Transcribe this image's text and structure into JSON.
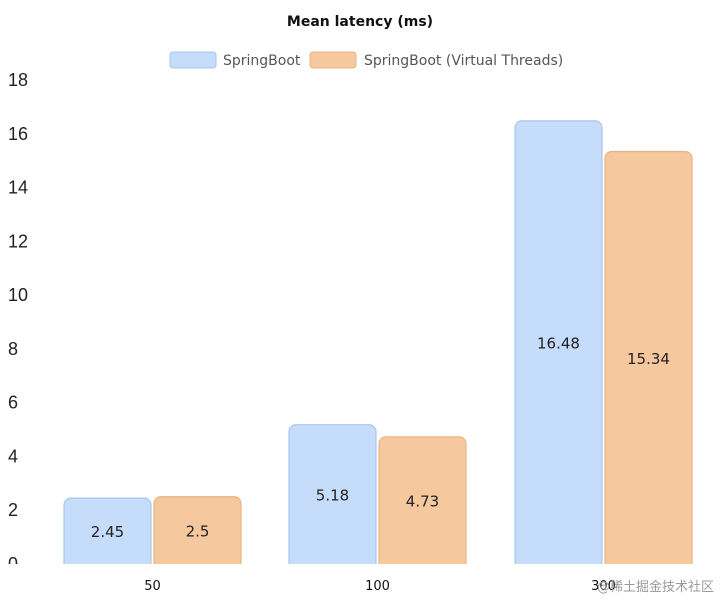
{
  "chart_data": {
    "type": "bar",
    "title": "Mean latency (ms)",
    "categories": [
      "50",
      "100",
      "300"
    ],
    "series": [
      {
        "name": "SpringBoot",
        "values": [
          2.45,
          5.18,
          16.48
        ]
      },
      {
        "name": "SpringBoot (Virtual Threads)",
        "values": [
          2.5,
          4.73,
          15.34
        ]
      }
    ],
    "ylim": [
      0,
      18
    ],
    "yticks": [
      0,
      2,
      4,
      6,
      8,
      10,
      12,
      14,
      16,
      18
    ],
    "grid": false,
    "legend_position": "top-center",
    "colors": {
      "series_fill": [
        "#c5dcfb",
        "#f5c89d"
      ],
      "series_stroke": [
        "#a9c6ee",
        "#e8b383"
      ]
    },
    "data_labels": true
  },
  "watermark": "@稀土掘金技术社区"
}
